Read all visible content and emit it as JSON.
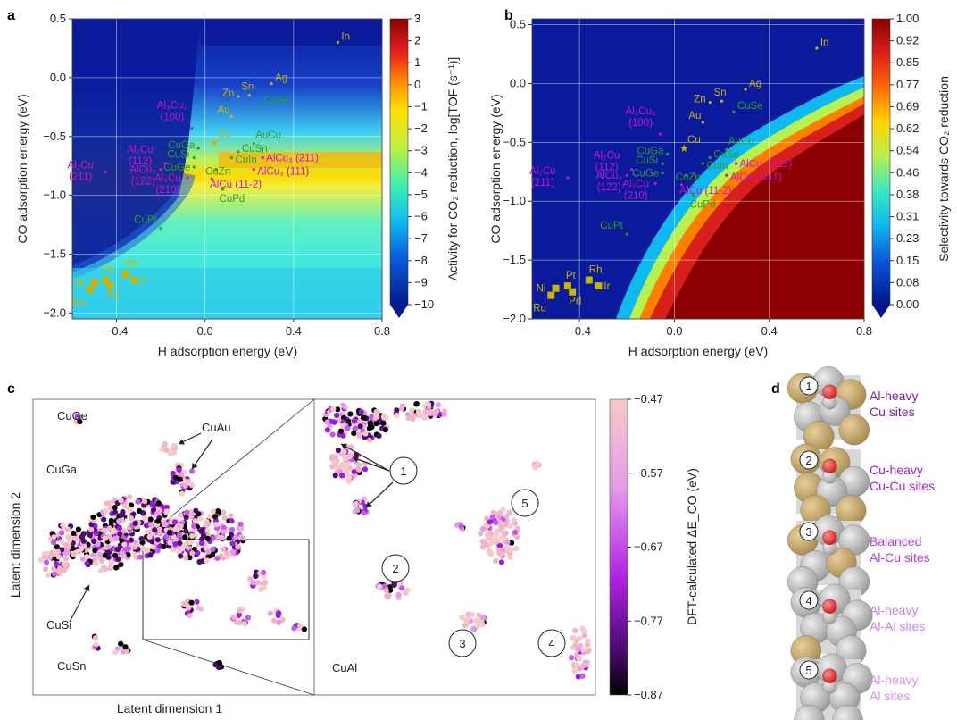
{
  "panels": {
    "a": "a",
    "b": "b",
    "c": "c",
    "d": "d"
  },
  "colors": {
    "magenta": "#d010d0",
    "green": "#2aa02a",
    "yellow": "#c9b40a",
    "purple_dark": "#7a1fa2",
    "purple_mid": "#b020d8",
    "purple_light": "#d070e0"
  },
  "chart_data": [
    {
      "id": "a",
      "type": "heatmap",
      "xlabel": "H adsorption energy (eV)",
      "ylabel": "CO adsorption energy (eV)",
      "xlim": [
        -0.6,
        0.8
      ],
      "ylim": [
        -2.05,
        0.5
      ],
      "xticks": [
        "−0.4",
        "0.0",
        "0.4",
        "0.8"
      ],
      "xtick_values": [
        -0.4,
        0.0,
        0.4,
        0.8
      ],
      "yticks": [
        "0.5",
        "0.0",
        "−0.5",
        "−1.0",
        "−1.5",
        "−2.0"
      ],
      "ytick_values": [
        0.5,
        0.0,
        -0.5,
        -1.0,
        -1.5,
        -2.0
      ],
      "colorbar_label": "Activity for CO₂ reduction, log[TOF (s⁻¹)]",
      "colorbar_ticks": [
        "3",
        "2",
        "1",
        "0",
        "−1",
        "−2",
        "−3",
        "−4",
        "−5",
        "−6",
        "−7",
        "−8",
        "−9",
        "−10"
      ],
      "colorbar_values": [
        3,
        2,
        1,
        0,
        -1,
        -2,
        -3,
        -4,
        -5,
        -6,
        -7,
        -8,
        -9,
        -10
      ],
      "grid": true
    },
    {
      "id": "b",
      "type": "heatmap",
      "xlabel": "H adsorption energy (eV)",
      "ylabel": "CO adsorption energy (eV)",
      "xlim": [
        -0.6,
        0.8
      ],
      "ylim": [
        -2.0,
        0.55
      ],
      "xticks": [
        "−0.4",
        "0.0",
        "0.4",
        "0.8"
      ],
      "xtick_values": [
        -0.4,
        0.0,
        0.4,
        0.8
      ],
      "yticks": [
        "0.5",
        "0.0",
        "−0.5",
        "−1.0",
        "−1.5",
        "−2.0"
      ],
      "ytick_values": [
        0.5,
        0.0,
        -0.5,
        -1.0,
        -1.5,
        -2.0
      ],
      "colorbar_label": "Selectivity towards CO₂ reduction",
      "colorbar_ticks": [
        "1.00",
        "0.92",
        "0.85",
        "0.77",
        "0.69",
        "0.62",
        "0.54",
        "0.46",
        "0.38",
        "0.31",
        "0.23",
        "0.15",
        "0.08",
        "0.00"
      ],
      "colorbar_values": [
        1.0,
        0.92,
        0.85,
        0.77,
        0.69,
        0.62,
        0.54,
        0.46,
        0.38,
        0.31,
        0.23,
        0.15,
        0.08,
        0.0
      ],
      "grid": true
    },
    {
      "id": "c",
      "type": "scatter",
      "xlabel": "Latent dimension 1",
      "ylabel": "Latent dimension 2",
      "colorbar_label": "DFT-calculated ΔE_CO (eV)",
      "colorbar_ticks": [
        "−0.47",
        "−0.57",
        "−0.67",
        "−0.77",
        "−0.87"
      ],
      "colorbar_values": [
        -0.47,
        -0.57,
        -0.67,
        -0.77,
        -0.87
      ],
      "system_labels": [
        "CuGe",
        "CuAu",
        "CuGa",
        "CuSi",
        "CuSn",
        "CuAl"
      ],
      "cluster_labels": [
        "1",
        "2",
        "3",
        "4",
        "5"
      ]
    }
  ],
  "materials": [
    {
      "name": "In",
      "h": 0.6,
      "co": 0.3,
      "color": "yellow",
      "label": "In"
    },
    {
      "name": "Sn",
      "h": 0.2,
      "co": -0.15,
      "color": "yellow",
      "label": "Sn"
    },
    {
      "name": "Ag",
      "h": 0.3,
      "co": -0.05,
      "color": "yellow",
      "label": "Ag"
    },
    {
      "name": "Zn",
      "h": 0.15,
      "co": -0.16,
      "color": "yellow",
      "label": "Zn"
    },
    {
      "name": "Au",
      "h": 0.12,
      "co": -0.33,
      "color": "yellow",
      "label": "Au"
    },
    {
      "name": "Cu",
      "h": 0.04,
      "co": -0.55,
      "color": "yellow",
      "label": "Cu"
    },
    {
      "name": "CuSe",
      "h": 0.25,
      "co": -0.24,
      "color": "green",
      "label": "CuSe"
    },
    {
      "name": "AuCu",
      "h": 0.22,
      "co": -0.56,
      "color": "green",
      "label": "AuCu"
    },
    {
      "name": "CuSn",
      "h": 0.15,
      "co": -0.63,
      "color": "green",
      "label": "CuSn"
    },
    {
      "name": "CuIn",
      "h": 0.12,
      "co": -0.68,
      "color": "green",
      "label": "CuIn"
    },
    {
      "name": "CuZn",
      "h": 0.05,
      "co": -0.78,
      "color": "green",
      "label": "CuZn"
    },
    {
      "name": "CuPd",
      "h": 0.08,
      "co": -0.95,
      "color": "green",
      "label": "CuPd"
    },
    {
      "name": "CuGa",
      "h": -0.03,
      "co": -0.6,
      "color": "green",
      "label": "CuGa"
    },
    {
      "name": "CuSi",
      "h": -0.05,
      "co": -0.68,
      "color": "green",
      "label": "CuSi"
    },
    {
      "name": "CuGe",
      "h": -0.05,
      "co": -0.76,
      "color": "green",
      "label": "CuGe"
    },
    {
      "name": "CuPt",
      "h": -0.2,
      "co": -1.28,
      "color": "green",
      "label": "CuPt"
    },
    {
      "name": "Al3Cu2(100)",
      "h": -0.06,
      "co": -0.43,
      "color": "magenta",
      "label": "Al₃Cu₂",
      "sub": "(100)"
    },
    {
      "name": "Al2Cu(112)",
      "h": -0.18,
      "co": -0.73,
      "color": "magenta",
      "label": "Al₂Cu",
      "sub": "(112)"
    },
    {
      "name": "Al2Cu(211)",
      "h": -0.45,
      "co": -0.8,
      "color": "magenta",
      "label": "Al₂Cu",
      "sub": "(211)"
    },
    {
      "name": "AlCu3(122)",
      "h": -0.2,
      "co": -0.78,
      "color": "magenta",
      "label": "AlCu₃",
      "sub": "(122)"
    },
    {
      "name": "Al3Cu(210)",
      "h": -0.08,
      "co": -0.85,
      "color": "magenta",
      "label": "Al₃Cu",
      "sub": "(210)"
    },
    {
      "name": "AlCu(11-2)",
      "h": 0.03,
      "co": -0.86,
      "color": "magenta",
      "label": "AlCu (11-2)"
    },
    {
      "name": "AlCu3(211)",
      "h": 0.26,
      "co": -0.68,
      "color": "magenta",
      "label": "AlCu₃ (211)"
    },
    {
      "name": "AlCu3(111)",
      "h": 0.22,
      "co": -0.78,
      "color": "magenta",
      "label": "AlCu₃ (111)"
    },
    {
      "name": "Ni",
      "h": -0.5,
      "co": -1.74,
      "color": "yellow",
      "label": "Ni"
    },
    {
      "name": "Pt",
      "h": -0.45,
      "co": -1.72,
      "color": "yellow",
      "label": "Pt"
    },
    {
      "name": "Rh",
      "h": -0.36,
      "co": -1.67,
      "color": "yellow",
      "label": "Rh"
    },
    {
      "name": "Ir",
      "h": -0.32,
      "co": -1.72,
      "color": "yellow",
      "label": "Ir"
    },
    {
      "name": "Pd",
      "h": -0.43,
      "co": -1.77,
      "color": "yellow",
      "label": "Pd"
    },
    {
      "name": "Ru",
      "h": -0.52,
      "co": -1.8,
      "color": "yellow",
      "label": "Ru"
    }
  ],
  "site_types": [
    {
      "num": "1",
      "line1": "Al-heavy",
      "line2": "Cu sites",
      "color": "#7a1fa2"
    },
    {
      "num": "2",
      "line1": "Cu-heavy",
      "line2": "Cu-Cu sites",
      "color": "#a022d8"
    },
    {
      "num": "3",
      "line1": "Balanced",
      "line2": "Al-Cu sites",
      "color": "#b63ae0"
    },
    {
      "num": "4",
      "line1": "Al-heavy",
      "line2": "Al-Al sites",
      "color": "#d27ee6"
    },
    {
      "num": "5",
      "line1": "Al-heavy",
      "line2": "Al sites",
      "color": "#d98fe8"
    }
  ]
}
